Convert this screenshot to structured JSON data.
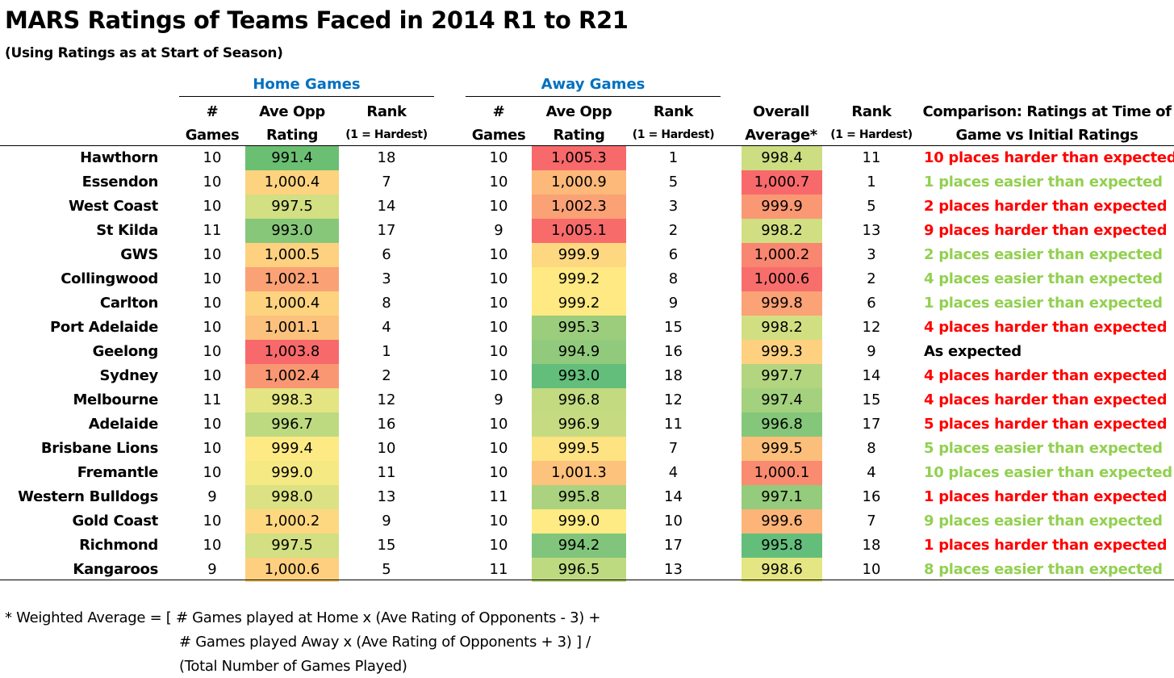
{
  "title": "MARS Ratings of Teams Faced in 2014 R1 to R21",
  "subtitle": "(Using Ratings as at Start of Season)",
  "groups": {
    "home": "Home Games",
    "away": "Away Games"
  },
  "headers": {
    "games_l1": "#",
    "games_l2": "Games",
    "ave_l1": "Ave Opp",
    "ave_l2": "Rating",
    "rank_l1": "Rank",
    "rank_l2": "(1 = Hardest)",
    "overall_l1": "Overall",
    "overall_l2": "Average*",
    "comp_l1": "Comparison: Ratings at Time of",
    "comp_l2": "Game vs Initial Ratings"
  },
  "colors": {
    "group_header": "#0070C0",
    "harder_text": "#FF0000",
    "easier_text": "#92D050",
    "expected_text": "#000000"
  },
  "chart_data": {
    "type": "table",
    "columns": [
      "Team",
      "Home # Games",
      "Home Ave Opp Rating",
      "Home Rank",
      "Away # Games",
      "Away Ave Opp Rating",
      "Away Rank",
      "Overall Average*",
      "Overall Rank",
      "Comparison"
    ],
    "rows": [
      {
        "team": "Hawthorn",
        "hg": "10",
        "hr": "991.4",
        "hk": "18",
        "ag": "10",
        "ar": "1,005.3",
        "ak": "1",
        "ov": "998.4",
        "ok": "11",
        "cmp": "10 places harder than expected",
        "cmp_type": "harder",
        "hr_color": "#6BBF73",
        "ar_color": "#F8696B",
        "ov_color": "#CDDD82"
      },
      {
        "team": "Essendon",
        "hg": "10",
        "hr": "1,000.4",
        "hk": "7",
        "ag": "10",
        "ar": "1,000.9",
        "ak": "5",
        "ov": "1,000.7",
        "ok": "1",
        "cmp": "1 places easier than expected",
        "cmp_type": "easier",
        "hr_color": "#FDD37F",
        "ar_color": "#FCB97A",
        "ov_color": "#F8696B"
      },
      {
        "team": "West Coast",
        "hg": "10",
        "hr": "997.5",
        "hk": "14",
        "ag": "10",
        "ar": "1,002.3",
        "ak": "3",
        "ov": "999.9",
        "ok": "5",
        "cmp": "2 places harder than expected",
        "cmp_type": "harder",
        "hr_color": "#D2DF82",
        "ar_color": "#FBA176",
        "ov_color": "#FA9874"
      },
      {
        "team": "St Kilda",
        "hg": "11",
        "hr": "993.0",
        "hk": "17",
        "ag": "9",
        "ar": "1,005.1",
        "ak": "2",
        "ov": "998.2",
        "ok": "13",
        "cmp": "9 places harder than expected",
        "cmp_type": "harder",
        "hr_color": "#87C77A",
        "ar_color": "#F86B6B",
        "ov_color": "#D1DF82"
      },
      {
        "team": "GWS",
        "hg": "10",
        "hr": "1,000.5",
        "hk": "6",
        "ag": "10",
        "ar": "999.9",
        "ak": "6",
        "ov": "1,000.2",
        "ok": "3",
        "cmp": "2 places easier than expected",
        "cmp_type": "easier",
        "hr_color": "#FDD17F",
        "ar_color": "#FED880",
        "ov_color": "#F98670"
      },
      {
        "team": "Collingwood",
        "hg": "10",
        "hr": "1,002.1",
        "hk": "3",
        "ag": "10",
        "ar": "999.2",
        "ak": "8",
        "ov": "1,000.6",
        "ok": "2",
        "cmp": "4 places easier than expected",
        "cmp_type": "easier",
        "hr_color": "#FBA176",
        "ar_color": "#FEE983",
        "ov_color": "#F86E6C"
      },
      {
        "team": "Carlton",
        "hg": "10",
        "hr": "1,000.4",
        "hk": "8",
        "ag": "10",
        "ar": "999.2",
        "ak": "9",
        "ov": "999.8",
        "ok": "6",
        "cmp": "1 places easier than expected",
        "cmp_type": "easier",
        "hr_color": "#FDD37F",
        "ar_color": "#FEE983",
        "ov_color": "#FBA276"
      },
      {
        "team": "Port Adelaide",
        "hg": "10",
        "hr": "1,001.1",
        "hk": "4",
        "ag": "10",
        "ar": "995.3",
        "ak": "15",
        "ov": "998.2",
        "ok": "12",
        "cmp": "4 places harder than expected",
        "cmp_type": "harder",
        "hr_color": "#FCC17C",
        "ar_color": "#9CCD7D",
        "ov_color": "#D1DF82"
      },
      {
        "team": "Geelong",
        "hg": "10",
        "hr": "1,003.8",
        "hk": "1",
        "ag": "10",
        "ar": "994.9",
        "ak": "16",
        "ov": "999.3",
        "ok": "9",
        "cmp": "As expected",
        "cmp_type": "expected",
        "hr_color": "#F8696B",
        "ar_color": "#91CA7C",
        "ov_color": "#FDD17F"
      },
      {
        "team": "Sydney",
        "hg": "10",
        "hr": "1,002.4",
        "hk": "2",
        "ag": "10",
        "ar": "993.0",
        "ak": "18",
        "ov": "997.7",
        "ok": "14",
        "cmp": "4 places harder than expected",
        "cmp_type": "harder",
        "hr_color": "#FA9773",
        "ar_color": "#63BE7B",
        "ov_color": "#B3D580"
      },
      {
        "team": "Melbourne",
        "hg": "11",
        "hr": "998.3",
        "hk": "12",
        "ag": "9",
        "ar": "996.8",
        "ak": "12",
        "ov": "997.4",
        "ok": "15",
        "cmp": "4 places harder than expected",
        "cmp_type": "harder",
        "hr_color": "#E4E483",
        "ar_color": "#C3DA81",
        "ov_color": "#A4D17E"
      },
      {
        "team": "Adelaide",
        "hg": "10",
        "hr": "996.7",
        "hk": "16",
        "ag": "10",
        "ar": "996.9",
        "ak": "11",
        "ov": "996.8",
        "ok": "17",
        "cmp": "5 places harder than expected",
        "cmp_type": "harder",
        "hr_color": "#BEDA81",
        "ar_color": "#C6DB81",
        "ov_color": "#85C77A"
      },
      {
        "team": "Brisbane Lions",
        "hg": "10",
        "hr": "999.4",
        "hk": "10",
        "ag": "10",
        "ar": "999.5",
        "ak": "7",
        "ov": "999.5",
        "ok": "8",
        "cmp": "5 places easier than expected",
        "cmp_type": "easier",
        "hr_color": "#FEEA84",
        "ar_color": "#FEE382",
        "ov_color": "#FCBF7B"
      },
      {
        "team": "Fremantle",
        "hg": "10",
        "hr": "999.0",
        "hk": "11",
        "ag": "10",
        "ar": "1,001.3",
        "ak": "4",
        "ov": "1,000.1",
        "ok": "4",
        "cmp": "10 places easier than expected",
        "cmp_type": "easier",
        "hr_color": "#F5E984",
        "ar_color": "#FDC27C",
        "ov_color": "#F98B71"
      },
      {
        "team": "Western Bulldogs",
        "hg": "9",
        "hr": "998.0",
        "hk": "13",
        "ag": "11",
        "ar": "995.8",
        "ak": "14",
        "ov": "997.1",
        "ok": "16",
        "cmp": "1 places harder than expected",
        "cmp_type": "harder",
        "hr_color": "#DCE283",
        "ar_color": "#ABD27F",
        "ov_color": "#95CB7C"
      },
      {
        "team": "Gold Coast",
        "hg": "10",
        "hr": "1,000.2",
        "hk": "9",
        "ag": "10",
        "ar": "999.0",
        "ak": "10",
        "ov": "999.6",
        "ok": "7",
        "cmp": "9 places easier than expected",
        "cmp_type": "easier",
        "hr_color": "#FED880",
        "ar_color": "#FEEB84",
        "ov_color": "#FCB479"
      },
      {
        "team": "Richmond",
        "hg": "10",
        "hr": "997.5",
        "hk": "15",
        "ag": "10",
        "ar": "994.2",
        "ak": "17",
        "ov": "995.8",
        "ok": "18",
        "cmp": "1 places harder than expected",
        "cmp_type": "harder",
        "hr_color": "#D2DF82",
        "ar_color": "#80C57B",
        "ov_color": "#63BE7B"
      },
      {
        "team": "Kangaroos",
        "hg": "9",
        "hr": "1,000.6",
        "hk": "5",
        "ag": "11",
        "ar": "996.5",
        "ak": "13",
        "ov": "998.6",
        "ok": "10",
        "cmp": "8 places easier than expected",
        "cmp_type": "easier",
        "hr_color": "#FDCF7E",
        "ar_color": "#BDDA81",
        "ov_color": "#E4E583"
      }
    ]
  },
  "footnote": {
    "line1": "* Weighted Average = [ # Games played at Home x (Ave Rating of Opponents - 3) +",
    "line2": "# Games played Away x (Ave Rating of Opponents + 3) ] /",
    "line3": "(Total Number of Games Played)"
  }
}
